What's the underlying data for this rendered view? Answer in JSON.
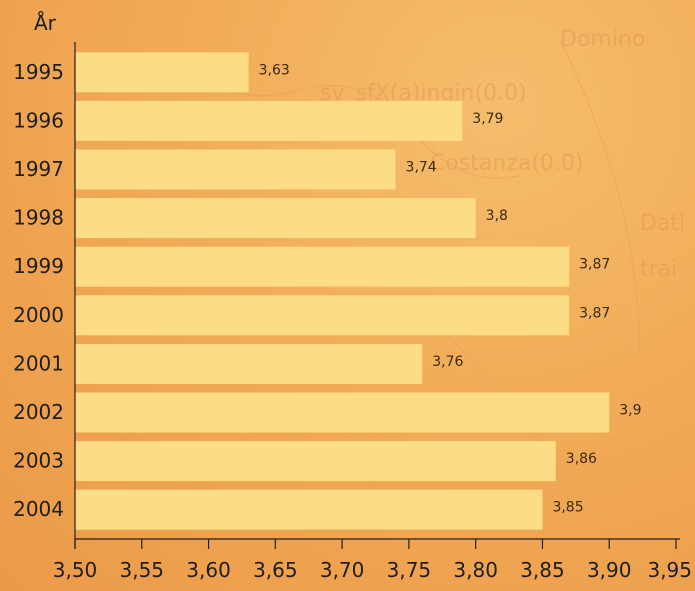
{
  "chart_data": {
    "type": "bar",
    "orientation": "horizontal",
    "title": "",
    "ylabel": "År",
    "xlabel": "",
    "categories": [
      "1995",
      "1996",
      "1997",
      "1998",
      "1999",
      "2000",
      "2001",
      "2002",
      "2003",
      "2004"
    ],
    "values": [
      3.63,
      3.79,
      3.74,
      3.8,
      3.87,
      3.87,
      3.76,
      3.9,
      3.86,
      3.85
    ],
    "value_labels": [
      "3,63",
      "3,79",
      "3,74",
      "3,8",
      "3,87",
      "3,87",
      "3,76",
      "3,9",
      "3,86",
      "3,85"
    ],
    "xlim": [
      3.5,
      3.95
    ],
    "x_ticks": [
      3.5,
      3.55,
      3.6,
      3.65,
      3.7,
      3.75,
      3.8,
      3.85,
      3.9,
      3.95
    ],
    "x_tick_labels": [
      "3,50",
      "3,55",
      "3,60",
      "3,65",
      "3,70",
      "3,75",
      "3,80",
      "3,85",
      "3,90",
      "3,95"
    ],
    "grid": false,
    "legend": "none",
    "colors": {
      "bar": "#fddc86",
      "background": "#f2ad5a",
      "text": "#1e1e1e"
    }
  }
}
